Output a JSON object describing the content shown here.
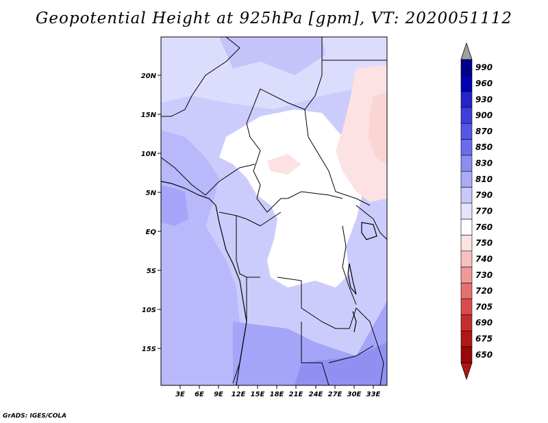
{
  "title": "Geopotential Height at 925hPa [gpm], VT: 2020051112",
  "credit": "GrADS: IGES/COLA",
  "map": {
    "lat_labels": [
      "20N",
      "15N",
      "10N",
      "5N",
      "EQ",
      "5S",
      "10S",
      "15S"
    ],
    "lon_labels": [
      "3E",
      "6E",
      "9E",
      "12E",
      "15E",
      "18E",
      "21E",
      "24E",
      "27E",
      "30E",
      "33E"
    ],
    "extent": {
      "lon_min": 0.5,
      "lon_max": 35,
      "lat_min": -20,
      "lat_max": 24.5
    },
    "colors": {
      "background": "#ccccfc",
      "neutral": "#ffffff",
      "low": "#fce2e2",
      "low_mid": "#fbd4d4",
      "high1": "#dcdcfc",
      "high2": "#b8b8fa",
      "high3": "#a4a4f8",
      "high4": "#9090f3",
      "border": "#000000"
    }
  },
  "colorbar": {
    "levels": [
      "990",
      "960",
      "930",
      "900",
      "870",
      "850",
      "830",
      "810",
      "790",
      "770",
      "760",
      "750",
      "740",
      "730",
      "720",
      "705",
      "690",
      "675",
      "650"
    ],
    "colors": [
      "#00008c",
      "#0000b4",
      "#2424c8",
      "#3e3edb",
      "#5656e6",
      "#6c6cee",
      "#8c8cf3",
      "#aaaaf7",
      "#c8c8fa",
      "#e4e4fd",
      "#ffffff",
      "#fde2e2",
      "#f8c0c0",
      "#f09898",
      "#e47070",
      "#d84c4c",
      "#c62e2e",
      "#b01818",
      "#980808"
    ],
    "top_arrow_color": "#a0a0a0",
    "bottom_arrow_color": "#b01414"
  }
}
